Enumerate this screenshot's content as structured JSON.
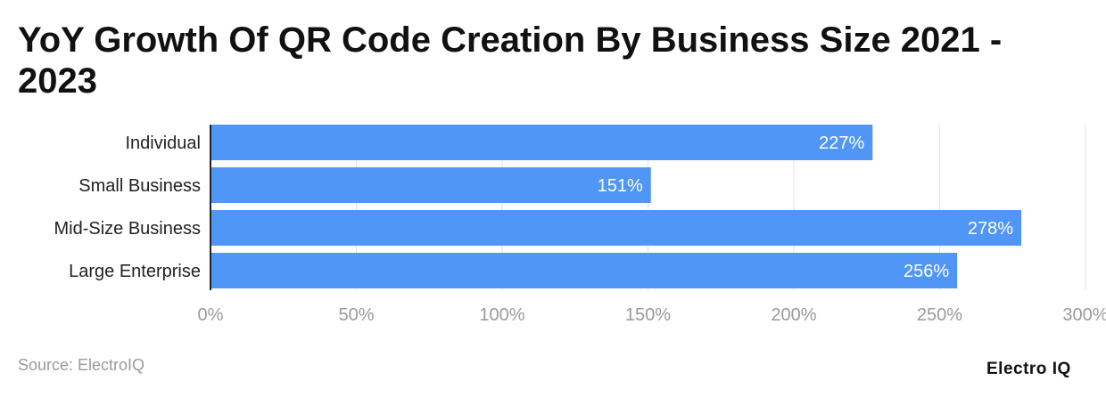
{
  "title": "YoY Growth Of QR Code Creation By Business Size 2021 - 2023",
  "source": "Source: ElectroIQ",
  "brand": "Electro IQ",
  "colors": {
    "bar": "#4f96f7",
    "grid": "#e3e3e3",
    "axis": "#222222",
    "tick_text": "#9a9a9a",
    "label_text": "#222222",
    "value_text": "#ffffff"
  },
  "chart_data": {
    "type": "bar",
    "orientation": "horizontal",
    "categories": [
      "Individual",
      "Small Business",
      "Mid-Size Business",
      "Large Enterprise"
    ],
    "values": [
      227,
      151,
      278,
      256
    ],
    "data_labels": [
      "227%",
      "151%",
      "278%",
      "256%"
    ],
    "title": "YoY Growth Of QR Code Creation By Business Size 2021 - 2023",
    "xlabel": "",
    "ylabel": "",
    "xlim": [
      0,
      300
    ],
    "xticks": [
      0,
      50,
      100,
      150,
      200,
      250,
      300
    ],
    "xtick_labels": [
      "0%",
      "50%",
      "100%",
      "150%",
      "200%",
      "250%",
      "300%"
    ],
    "grid": true
  }
}
